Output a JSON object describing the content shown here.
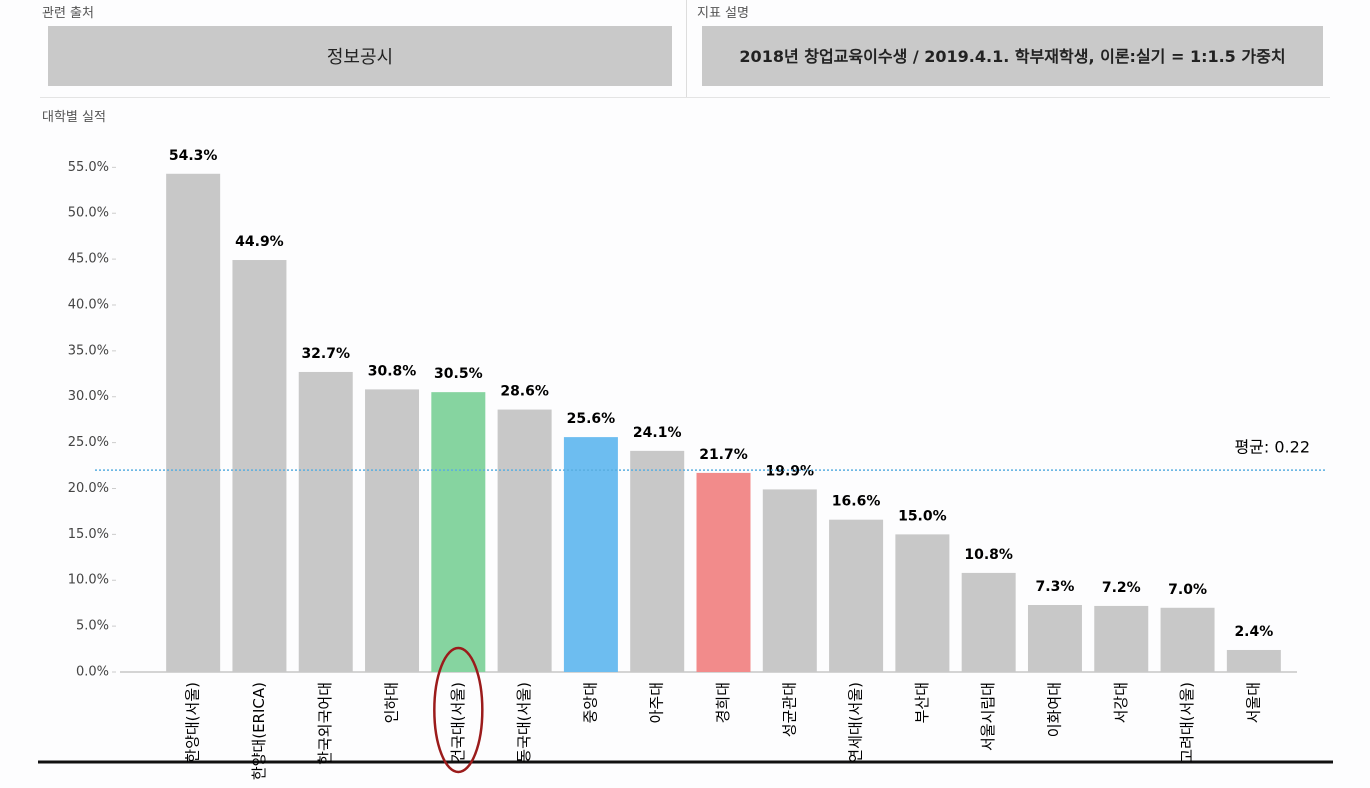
{
  "header": {
    "source_label": "관련 출처",
    "source": "정보공시",
    "description_label": "지표 설명",
    "description": "2018년 창업교육이수생 / 2019.4.1. 학부재학생, 이론:실기 = 1:1.5 가중치",
    "section_label": "대학별 실적"
  },
  "chart_data": {
    "type": "bar",
    "categories": [
      "한양대(서울)",
      "한양대(ERICA)",
      "한국외국어대",
      "인하대",
      "건국대(서울)",
      "동국대(서울)",
      "중앙대",
      "아주대",
      "경희대",
      "성균관대",
      "연세대(서울)",
      "부산대",
      "서울시립대",
      "이화여대",
      "서강대",
      "고려대(서울)",
      "서울대"
    ],
    "values": [
      54.3,
      44.9,
      32.7,
      30.8,
      30.5,
      28.6,
      25.6,
      24.1,
      21.7,
      19.9,
      16.6,
      15.0,
      10.8,
      7.3,
      7.2,
      7.0,
      2.4
    ],
    "value_labels": [
      "54.3%",
      "44.9%",
      "32.7%",
      "30.8%",
      "30.5%",
      "28.6%",
      "25.6%",
      "24.1%",
      "21.7%",
      "19.9%",
      "16.6%",
      "15.0%",
      "10.8%",
      "7.3%",
      "7.2%",
      "7.0%",
      "2.4%"
    ],
    "colors": [
      "#c8c8c8",
      "#c8c8c8",
      "#c8c8c8",
      "#c8c8c8",
      "#86d4a0",
      "#c8c8c8",
      "#6dbdf0",
      "#c8c8c8",
      "#f28b8b",
      "#c8c8c8",
      "#c8c8c8",
      "#c8c8c8",
      "#c8c8c8",
      "#c8c8c8",
      "#c8c8c8",
      "#c8c8c8",
      "#c8c8c8"
    ],
    "ylim": [
      0,
      57
    ],
    "yticks": [
      {
        "value": 0,
        "label": "0.0%"
      },
      {
        "value": 5,
        "label": "5.0%"
      },
      {
        "value": 10,
        "label": "10.0%"
      },
      {
        "value": 15,
        "label": "15.0%"
      },
      {
        "value": 20,
        "label": "20.0%"
      },
      {
        "value": 25,
        "label": "25.0%"
      },
      {
        "value": 30,
        "label": "30.0%"
      },
      {
        "value": 35,
        "label": "35.0%"
      },
      {
        "value": 40,
        "label": "40.0%"
      },
      {
        "value": 45,
        "label": "45.0%"
      },
      {
        "value": 50,
        "label": "50.0%"
      },
      {
        "value": 55,
        "label": "55.0%"
      }
    ],
    "average": {
      "value": 22,
      "label": "평균: 0.22",
      "color": "#5aaee0"
    },
    "highlight_index": 4
  }
}
